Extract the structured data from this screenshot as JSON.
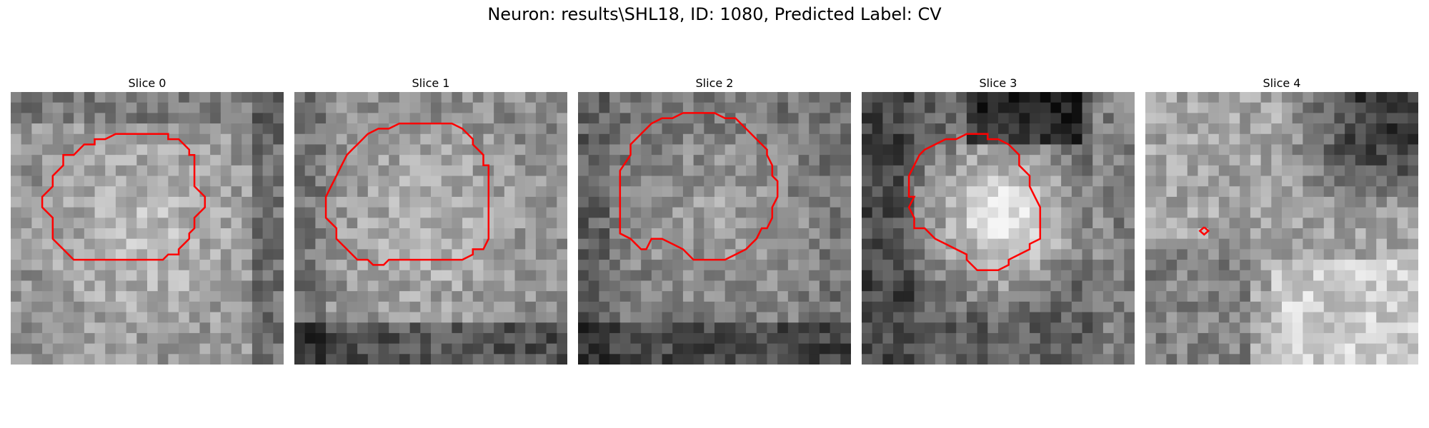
{
  "figure": {
    "title": "Neuron: results\\SHL18, ID: 1080, Predicted Label: CV"
  },
  "panels": [
    {
      "title": "Slice 0"
    },
    {
      "title": "Slice 1"
    },
    {
      "title": "Slice 2"
    },
    {
      "title": "Slice 3"
    },
    {
      "title": "Slice 4"
    }
  ],
  "colors": {
    "contour": "#ff0000",
    "background": "#ffffff"
  }
}
